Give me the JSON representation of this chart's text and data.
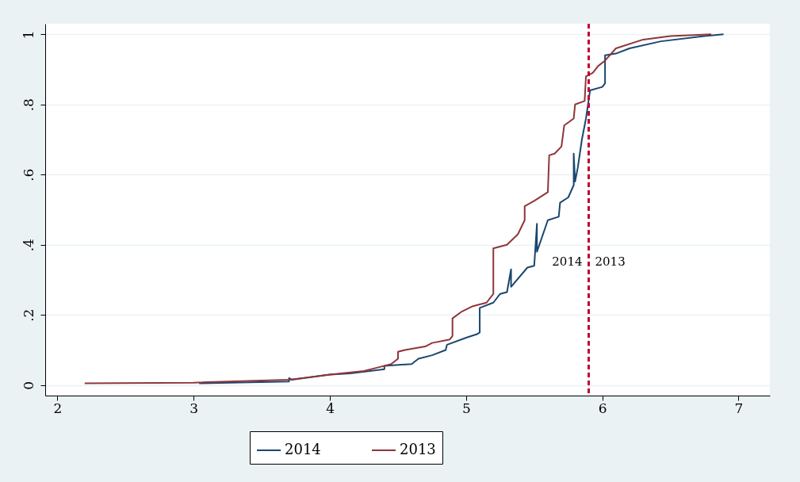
{
  "chart_data": {
    "type": "line",
    "xlim": [
      1.91,
      7.23
    ],
    "ylim": [
      -0.03,
      1.03
    ],
    "xticks": [
      2,
      3,
      4,
      5,
      6,
      7
    ],
    "yticks": [
      0,
      {
        "value": 0.2,
        "label": ".2"
      },
      {
        "value": 0.4,
        "label": ".4"
      },
      {
        "value": 0.6,
        "label": ".6"
      },
      {
        "value": 0.8,
        "label": ".8"
      },
      1
    ],
    "grid": "y",
    "legend": "bottom",
    "series": [
      {
        "name": "2014",
        "color": "#1a476f",
        "x": [
          3.04,
          3.7,
          3.7,
          3.72,
          4.0,
          4.15,
          4.4,
          4.4,
          4.6,
          4.65,
          4.75,
          4.85,
          4.86,
          5.0,
          5.08,
          5.1,
          5.1,
          5.2,
          5.25,
          5.3,
          5.33,
          5.33,
          5.45,
          5.5,
          5.52,
          5.52,
          5.6,
          5.68,
          5.69,
          5.75,
          5.79,
          5.79,
          5.8,
          5.82,
          5.85,
          5.88,
          5.91,
          6.0,
          6.02,
          6.02,
          6.1,
          6.2,
          6.43,
          6.75,
          6.89
        ],
        "values": [
          0.005,
          0.01,
          0.02,
          0.015,
          0.03,
          0.033,
          0.045,
          0.055,
          0.06,
          0.075,
          0.085,
          0.1,
          0.115,
          0.135,
          0.145,
          0.15,
          0.22,
          0.235,
          0.26,
          0.265,
          0.33,
          0.28,
          0.335,
          0.34,
          0.46,
          0.38,
          0.47,
          0.48,
          0.52,
          0.535,
          0.57,
          0.66,
          0.58,
          0.62,
          0.7,
          0.76,
          0.84,
          0.85,
          0.86,
          0.94,
          0.945,
          0.96,
          0.98,
          0.995,
          1.0
        ]
      },
      {
        "name": "2013",
        "color": "#90353b",
        "x": [
          2.2,
          3.0,
          3.7,
          3.8,
          4.0,
          4.25,
          4.35,
          4.45,
          4.5,
          4.5,
          4.55,
          4.7,
          4.75,
          4.88,
          4.9,
          4.9,
          4.97,
          5.05,
          5.15,
          5.2,
          5.2,
          5.25,
          5.3,
          5.38,
          5.43,
          5.43,
          5.5,
          5.6,
          5.61,
          5.65,
          5.7,
          5.72,
          5.79,
          5.8,
          5.87,
          5.88,
          5.93,
          5.97,
          6.02,
          6.1,
          6.3,
          6.5,
          6.8
        ],
        "values": [
          0.005,
          0.007,
          0.015,
          0.02,
          0.03,
          0.04,
          0.05,
          0.06,
          0.075,
          0.095,
          0.1,
          0.11,
          0.12,
          0.13,
          0.14,
          0.19,
          0.21,
          0.225,
          0.235,
          0.26,
          0.39,
          0.395,
          0.4,
          0.43,
          0.47,
          0.51,
          0.525,
          0.55,
          0.655,
          0.66,
          0.68,
          0.74,
          0.76,
          0.8,
          0.81,
          0.88,
          0.89,
          0.91,
          0.925,
          0.96,
          0.985,
          0.995,
          1.0
        ]
      }
    ],
    "ref_lines": [
      {
        "axis": "x",
        "value": 5.9,
        "color": "#c10534",
        "line_style": "dashed"
      }
    ],
    "annotations": [
      "2014",
      "2013"
    ]
  }
}
